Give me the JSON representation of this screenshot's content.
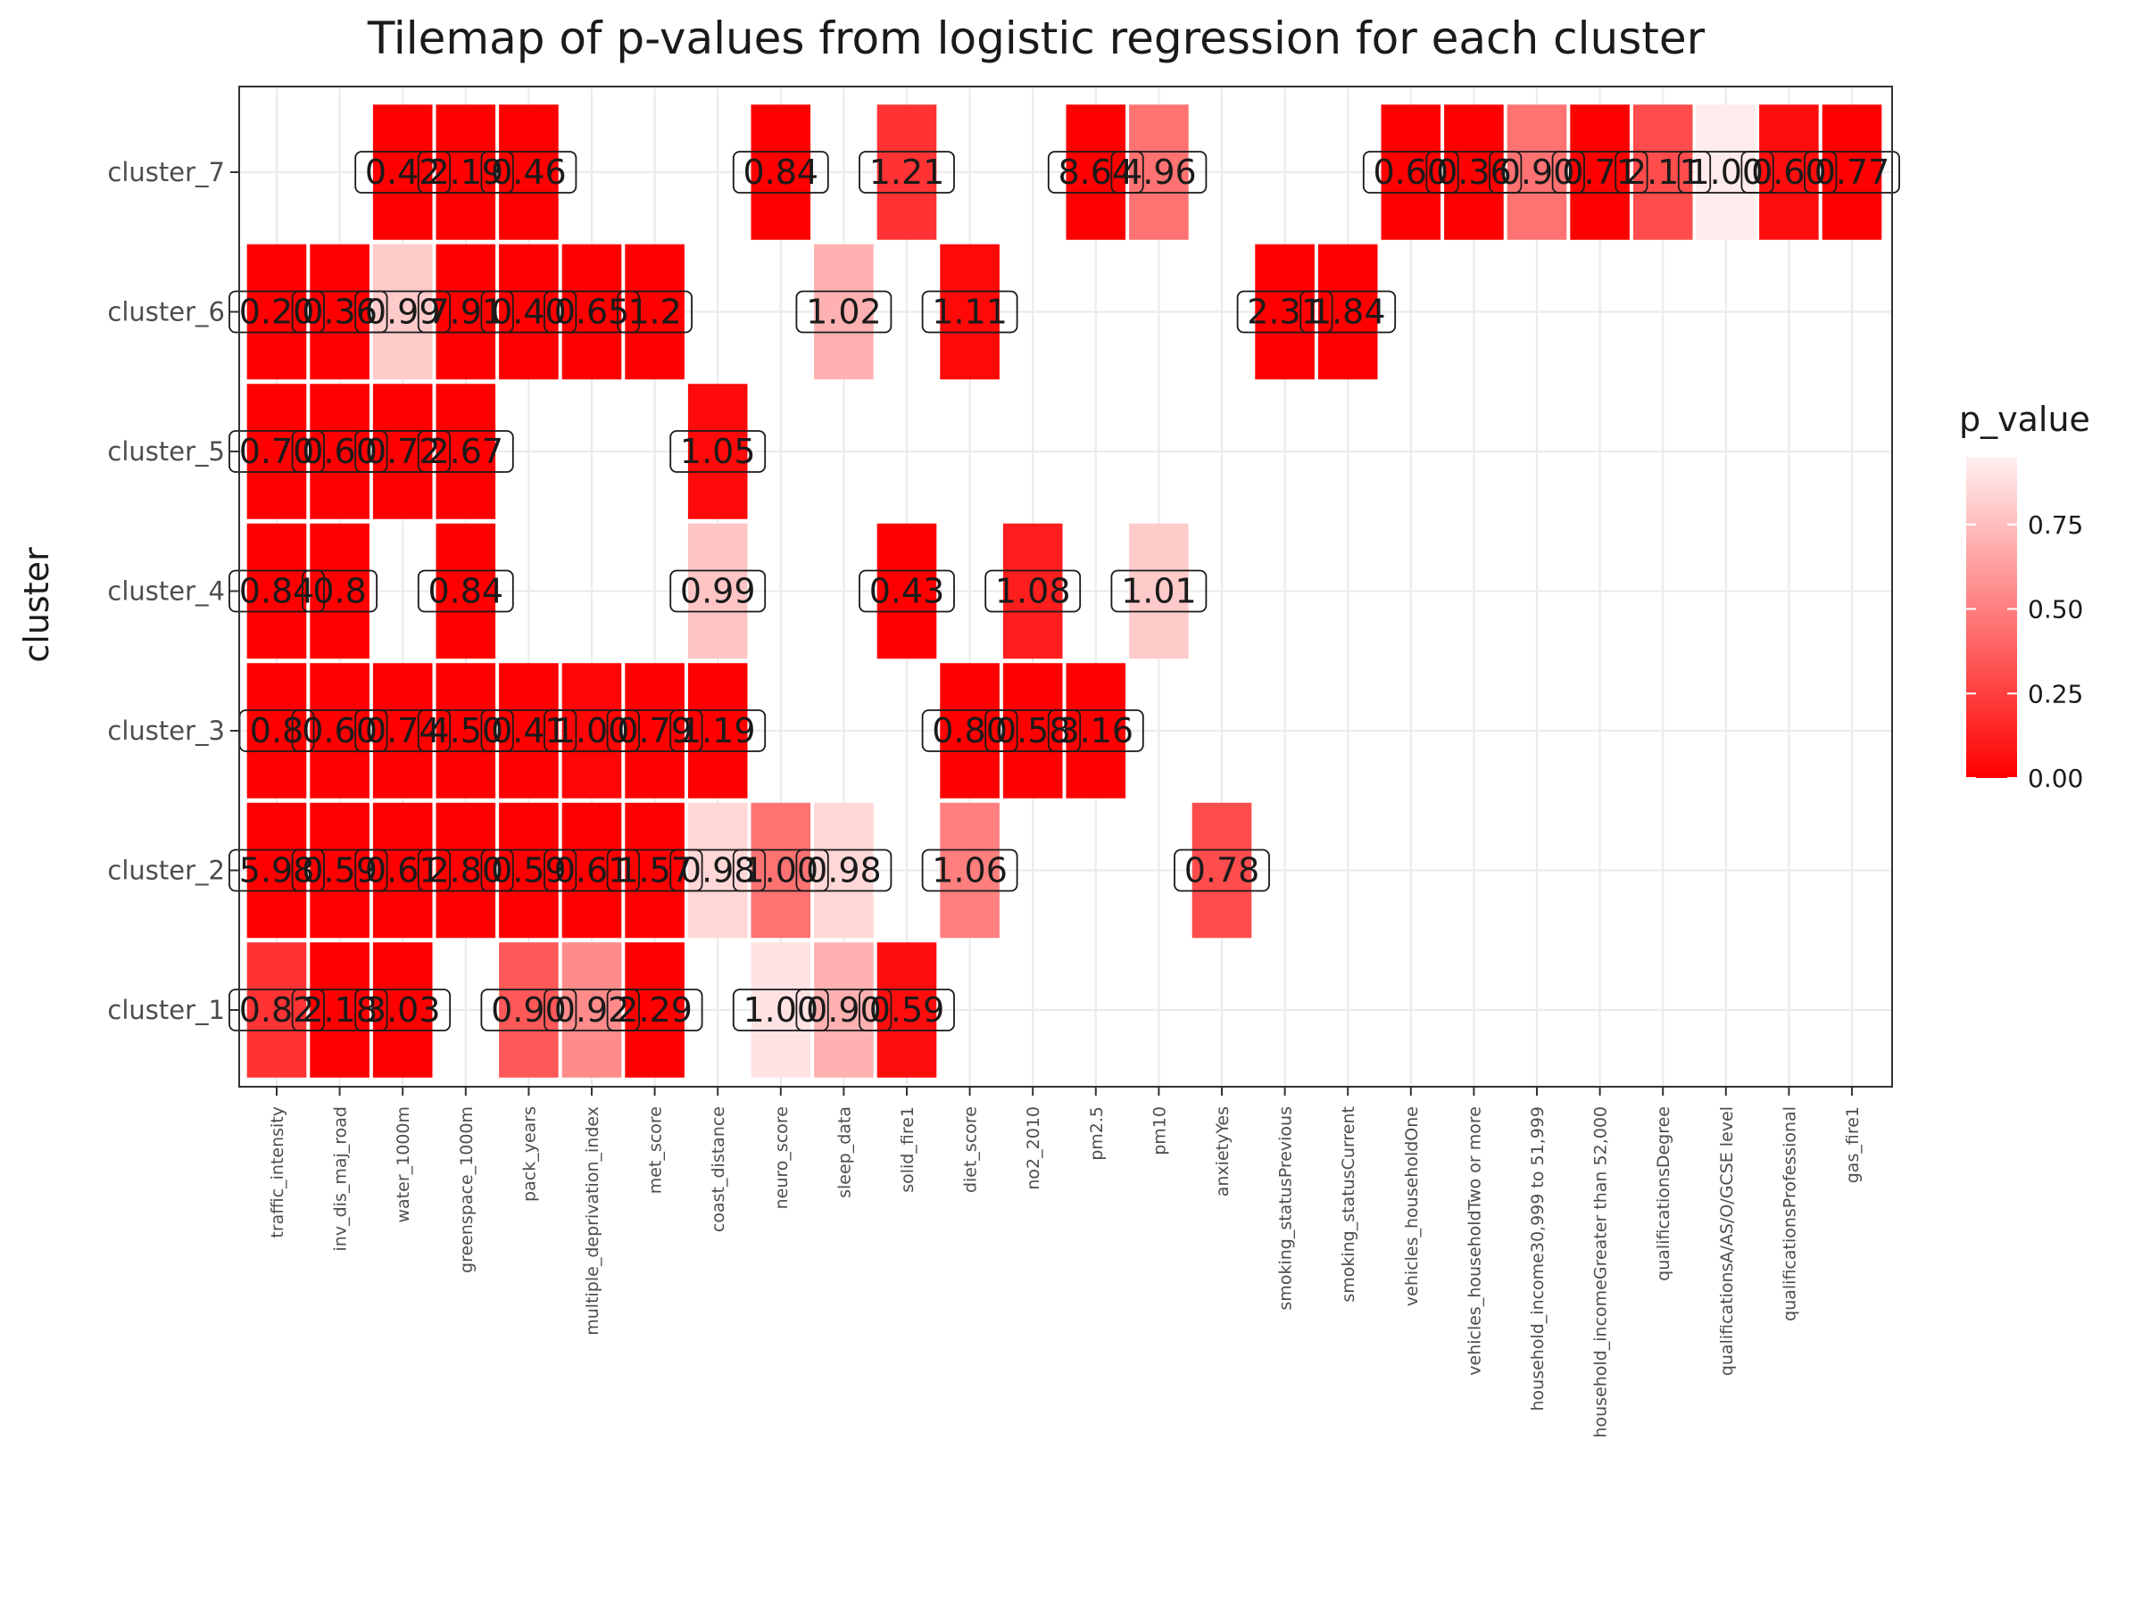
{
  "chart_data": {
    "type": "heatmap",
    "title": "Tilemap of p-values from logistic regression for each cluster",
    "xlabel": "",
    "ylabel": "cluster",
    "legend_title": "p_value",
    "legend_position": "right",
    "legend_ticks": [
      {
        "value": 0.0,
        "label": "0.00"
      },
      {
        "value": 0.25,
        "label": "0.25"
      },
      {
        "value": 0.5,
        "label": "0.50"
      },
      {
        "value": 0.75,
        "label": "0.75"
      }
    ],
    "color_scale": {
      "low": "#ff0000",
      "high": "#fff0f0",
      "range": [
        0,
        0.95
      ]
    },
    "grid": true,
    "x_categories": [
      "traffic_intensity",
      "inv_dis_maj_road",
      "water_1000m",
      "greenspace_1000m",
      "pack_years",
      "multiple_deprivation_index",
      "met_score",
      "coast_distance",
      "neuro_score",
      "sleep_data",
      "solid_fire1",
      "diet_score",
      "no2_2010",
      "pm2.5",
      "pm10",
      "anxietyYes",
      "smoking_statusPrevious",
      "smoking_statusCurrent",
      "vehicles_householdOne",
      "vehicles_householdTwo or more",
      "household_income30,999 to 51,999",
      "household_incomeGreater than 52,000",
      "qualificationsDegree",
      "qualificationsA/AS/O/GCSE level",
      "qualificationsProfessional",
      "gas_fire1"
    ],
    "y_categories": [
      "cluster_1",
      "cluster_2",
      "cluster_3",
      "cluster_4",
      "cluster_5",
      "cluster_6",
      "cluster_7"
    ],
    "cells": [
      {
        "x": "traffic_intensity",
        "y": "cluster_7",
        "p": null,
        "label": ""
      },
      {
        "x": "water_1000m",
        "y": "cluster_7",
        "p": 0.0,
        "label": "0.42"
      },
      {
        "x": "greenspace_1000m",
        "y": "cluster_7",
        "p": 0.0,
        "label": "2.19"
      },
      {
        "x": "pack_years",
        "y": "cluster_7",
        "p": 0.0,
        "label": "0.46"
      },
      {
        "x": "neuro_score",
        "y": "cluster_7",
        "p": 0.0,
        "label": "0.84"
      },
      {
        "x": "solid_fire1",
        "y": "cluster_7",
        "p": 0.2,
        "label": "1.21"
      },
      {
        "x": "pm2.5",
        "y": "cluster_7",
        "p": 0.0,
        "label": "8.64"
      },
      {
        "x": "pm10",
        "y": "cluster_7",
        "p": 0.45,
        "label": "4.96"
      },
      {
        "x": "vehicles_householdOne",
        "y": "cluster_7",
        "p": 0.0,
        "label": "0.60"
      },
      {
        "x": "vehicles_householdTwo or more",
        "y": "cluster_7",
        "p": 0.0,
        "label": "0.36"
      },
      {
        "x": "household_income30,999 to 51,999",
        "y": "cluster_7",
        "p": 0.45,
        "label": "0.90"
      },
      {
        "x": "household_incomeGreater than 52,000",
        "y": "cluster_7",
        "p": 0.0,
        "label": "0.71"
      },
      {
        "x": "qualificationsDegree",
        "y": "cluster_7",
        "p": 0.3,
        "label": "2.11"
      },
      {
        "x": "qualificationsA/AS/O/GCSE level",
        "y": "cluster_7",
        "p": 0.93,
        "label": "1.00"
      },
      {
        "x": "qualificationsProfessional",
        "y": "cluster_7",
        "p": 0.05,
        "label": "0.60"
      },
      {
        "x": "gas_fire1",
        "y": "cluster_7",
        "p": 0.0,
        "label": "0.77"
      },
      {
        "x": "traffic_intensity",
        "y": "cluster_6",
        "p": 0.0,
        "label": "0.20"
      },
      {
        "x": "inv_dis_maj_road",
        "y": "cluster_6",
        "p": 0.0,
        "label": "0.36"
      },
      {
        "x": "water_1000m",
        "y": "cluster_6",
        "p": 0.8,
        "label": "0.99"
      },
      {
        "x": "greenspace_1000m",
        "y": "cluster_6",
        "p": 0.0,
        "label": "7.91"
      },
      {
        "x": "pack_years",
        "y": "cluster_6",
        "p": 0.0,
        "label": "0.40"
      },
      {
        "x": "multiple_deprivation_index",
        "y": "cluster_6",
        "p": 0.0,
        "label": "0.65"
      },
      {
        "x": "met_score",
        "y": "cluster_6",
        "p": 0.0,
        "label": "1.2"
      },
      {
        "x": "sleep_data",
        "y": "cluster_6",
        "p": 0.7,
        "label": "1.02"
      },
      {
        "x": "diet_score",
        "y": "cluster_6",
        "p": 0.03,
        "label": "1.11"
      },
      {
        "x": "smoking_statusPrevious",
        "y": "cluster_6",
        "p": 0.0,
        "label": "2.31"
      },
      {
        "x": "smoking_statusCurrent",
        "y": "cluster_6",
        "p": 0.0,
        "label": "1.84"
      },
      {
        "x": "traffic_intensity",
        "y": "cluster_5",
        "p": 0.0,
        "label": "0.70"
      },
      {
        "x": "inv_dis_maj_road",
        "y": "cluster_5",
        "p": 0.0,
        "label": "0.60"
      },
      {
        "x": "water_1000m",
        "y": "cluster_5",
        "p": 0.0,
        "label": "0.72"
      },
      {
        "x": "greenspace_1000m",
        "y": "cluster_5",
        "p": 0.0,
        "label": "2.67"
      },
      {
        "x": "coast_distance",
        "y": "cluster_5",
        "p": 0.04,
        "label": "1.05"
      },
      {
        "x": "traffic_intensity",
        "y": "cluster_4",
        "p": 0.0,
        "label": "0.84"
      },
      {
        "x": "inv_dis_maj_road",
        "y": "cluster_4",
        "p": 0.0,
        "label": "0.8"
      },
      {
        "x": "greenspace_1000m",
        "y": "cluster_4",
        "p": 0.0,
        "label": "0.84"
      },
      {
        "x": "coast_distance",
        "y": "cluster_4",
        "p": 0.78,
        "label": "0.99"
      },
      {
        "x": "solid_fire1",
        "y": "cluster_4",
        "p": 0.0,
        "label": "0.43"
      },
      {
        "x": "no2_2010",
        "y": "cluster_4",
        "p": 0.12,
        "label": "1.08"
      },
      {
        "x": "pm10",
        "y": "cluster_4",
        "p": 0.8,
        "label": "1.01"
      },
      {
        "x": "traffic_intensity",
        "y": "cluster_3",
        "p": 0.0,
        "label": "0.8"
      },
      {
        "x": "inv_dis_maj_road",
        "y": "cluster_3",
        "p": 0.0,
        "label": "0.60"
      },
      {
        "x": "water_1000m",
        "y": "cluster_3",
        "p": 0.0,
        "label": "0.74"
      },
      {
        "x": "greenspace_1000m",
        "y": "cluster_3",
        "p": 0.0,
        "label": "4.50"
      },
      {
        "x": "pack_years",
        "y": "cluster_3",
        "p": 0.0,
        "label": "0.41"
      },
      {
        "x": "multiple_deprivation_index",
        "y": "cluster_3",
        "p": 0.02,
        "label": "1.00"
      },
      {
        "x": "met_score",
        "y": "cluster_3",
        "p": 0.0,
        "label": "0.79"
      },
      {
        "x": "coast_distance",
        "y": "cluster_3",
        "p": 0.0,
        "label": "1.19"
      },
      {
        "x": "diet_score",
        "y": "cluster_3",
        "p": 0.0,
        "label": "0.80"
      },
      {
        "x": "no2_2010",
        "y": "cluster_3",
        "p": 0.0,
        "label": "0.58"
      },
      {
        "x": "pm2.5",
        "y": "cluster_3",
        "p": 0.0,
        "label": "3.16"
      },
      {
        "x": "traffic_intensity",
        "y": "cluster_2",
        "p": 0.0,
        "label": "5.98"
      },
      {
        "x": "inv_dis_maj_road",
        "y": "cluster_2",
        "p": 0.0,
        "label": "0.59"
      },
      {
        "x": "water_1000m",
        "y": "cluster_2",
        "p": 0.0,
        "label": "0.61"
      },
      {
        "x": "greenspace_1000m",
        "y": "cluster_2",
        "p": 0.0,
        "label": "2.80"
      },
      {
        "x": "pack_years",
        "y": "cluster_2",
        "p": 0.0,
        "label": "0.59"
      },
      {
        "x": "multiple_deprivation_index",
        "y": "cluster_2",
        "p": 0.0,
        "label": "0.61"
      },
      {
        "x": "met_score",
        "y": "cluster_2",
        "p": 0.0,
        "label": "1.57"
      },
      {
        "x": "coast_distance",
        "y": "cluster_2",
        "p": 0.85,
        "label": "0.98"
      },
      {
        "x": "neuro_score",
        "y": "cluster_2",
        "p": 0.45,
        "label": "1.00"
      },
      {
        "x": "sleep_data",
        "y": "cluster_2",
        "p": 0.85,
        "label": "0.98"
      },
      {
        "x": "diet_score",
        "y": "cluster_2",
        "p": 0.5,
        "label": "1.06"
      },
      {
        "x": "anxietyYes",
        "y": "cluster_2",
        "p": 0.3,
        "label": "0.78"
      },
      {
        "x": "traffic_intensity",
        "y": "cluster_1",
        "p": 0.2,
        "label": "0.82"
      },
      {
        "x": "inv_dis_maj_road",
        "y": "cluster_1",
        "p": 0.0,
        "label": "2.18"
      },
      {
        "x": "water_1000m",
        "y": "cluster_1",
        "p": 0.0,
        "label": "3.03"
      },
      {
        "x": "pack_years",
        "y": "cluster_1",
        "p": 0.35,
        "label": "0.90"
      },
      {
        "x": "multiple_deprivation_index",
        "y": "cluster_1",
        "p": 0.55,
        "label": "0.92"
      },
      {
        "x": "met_score",
        "y": "cluster_1",
        "p": 0.0,
        "label": "2.29"
      },
      {
        "x": "neuro_score",
        "y": "cluster_1",
        "p": 0.9,
        "label": "1.00"
      },
      {
        "x": "sleep_data",
        "y": "cluster_1",
        "p": 0.7,
        "label": "0.90"
      },
      {
        "x": "solid_fire1",
        "y": "cluster_1",
        "p": 0.05,
        "label": "0.59"
      }
    ]
  }
}
